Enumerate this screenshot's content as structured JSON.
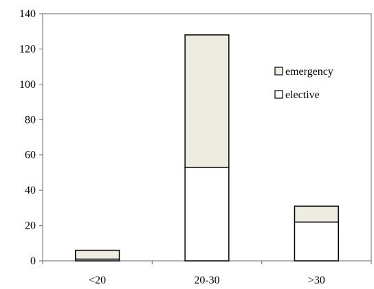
{
  "chart_data": {
    "type": "bar",
    "stacked": true,
    "categories": [
      "<20",
      "20-30",
      ">30"
    ],
    "series": [
      {
        "name": "elective",
        "values": [
          1,
          53,
          22
        ],
        "color": "#ffffff"
      },
      {
        "name": "emergency",
        "values": [
          5,
          75,
          9
        ],
        "color": "#eeece1"
      }
    ],
    "ylim": [
      0,
      140
    ],
    "yticks": [
      0,
      20,
      40,
      60,
      80,
      100,
      120,
      140
    ],
    "legend_entries": [
      "emergency",
      "elective"
    ],
    "legend_position": "top-right",
    "grid": false
  }
}
